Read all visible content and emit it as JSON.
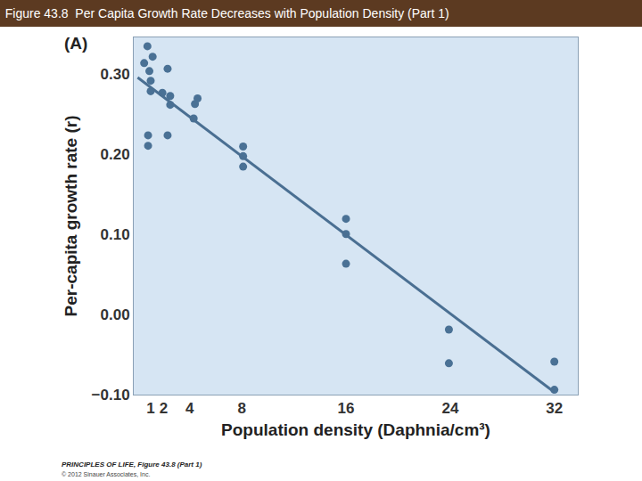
{
  "chart_data": {
    "type": "scatter",
    "title": "Figure 43.8  Per Capita Growth Rate Decreases with Population Density (Part 1)",
    "x_label": "Population density (Daphnia/cm³)",
    "y_label": "Per-capita growth rate (r)",
    "annotations": [
      "(A)",
      "PRINCIPLES OF LIFE, Figure 43.8 (Part 1)",
      "© 2012 Sinauer Associates, Inc."
    ],
    "xlim": [
      -0.3,
      33.8
    ],
    "ylim": [
      -0.1,
      0.345
    ],
    "xticks": [
      1,
      2,
      4,
      8,
      16,
      24,
      32
    ],
    "yticks": [
      {
        "value": 0.3,
        "label": "0.30"
      },
      {
        "value": 0.2,
        "label": "0.20"
      },
      {
        "value": 0.1,
        "label": "0.10"
      },
      {
        "value": 0,
        "label": "0.00"
      },
      {
        "value": -0.1,
        "label": "−0.10"
      }
    ],
    "grid": false,
    "series": [
      {
        "type": "scatter",
        "marker": "circle",
        "color": "#4a7195",
        "x": [
          0.75,
          0.5,
          1.15,
          0.9,
          1.0,
          1.0,
          2.3,
          1.9,
          2.5,
          2.5,
          0.8,
          0.8,
          2.3,
          4.6,
          4.4,
          4.3,
          8.1,
          8.1,
          8.1,
          16,
          16,
          16,
          23.9,
          23.9,
          32,
          32
        ],
        "values": [
          0.334,
          0.313,
          0.321,
          0.303,
          0.291,
          0.278,
          0.306,
          0.276,
          0.272,
          0.261,
          0.223,
          0.21,
          0.223,
          0.269,
          0.262,
          0.244,
          0.209,
          0.197,
          0.184,
          0.119,
          0.1,
          0.063,
          -0.019,
          -0.061,
          -0.059,
          -0.094
        ]
      },
      {
        "type": "line",
        "line_style": "solid",
        "color": "#4a6f92",
        "x": [
          0,
          32
        ],
        "values": [
          0.295,
          -0.097
        ]
      }
    ]
  }
}
